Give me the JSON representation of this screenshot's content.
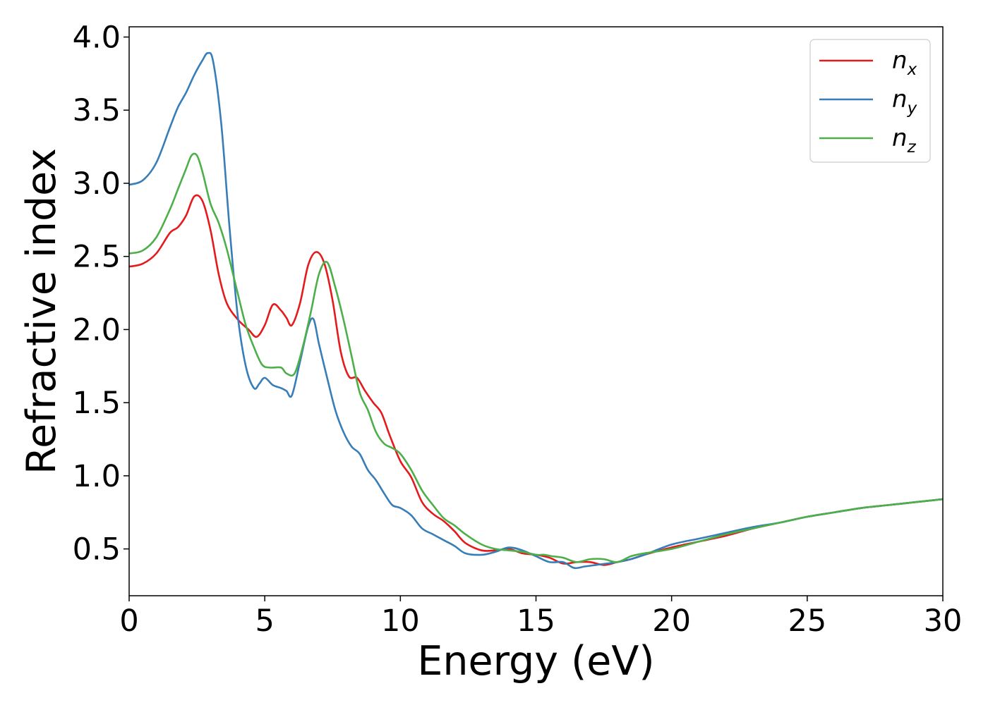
{
  "chart_data": {
    "type": "line",
    "xlabel": "Energy (eV)",
    "ylabel": "Refractive index",
    "xlim": [
      0,
      30
    ],
    "ylim": [
      0.18,
      4.07
    ],
    "xticks": [
      0,
      5,
      10,
      15,
      20,
      25,
      30
    ],
    "yticks": [
      0.5,
      1.0,
      1.5,
      2.0,
      2.5,
      3.0,
      3.5,
      4.0
    ],
    "xtick_labels": [
      "0",
      "5",
      "10",
      "15",
      "20",
      "25",
      "30"
    ],
    "ytick_labels": [
      "0.5",
      "1.0",
      "1.5",
      "2.0",
      "2.5",
      "3.0",
      "3.5",
      "4.0"
    ],
    "grid": false,
    "legend_position": "top-right",
    "series": [
      {
        "name": "n",
        "subscript": "x",
        "color": "#e41a1c",
        "x": [
          0,
          0.5,
          1.0,
          1.5,
          1.8,
          2.1,
          2.4,
          2.7,
          3.0,
          3.3,
          3.6,
          4.0,
          4.4,
          4.7,
          5.0,
          5.3,
          5.6,
          5.8,
          6.0,
          6.3,
          6.6,
          6.9,
          7.2,
          7.5,
          7.8,
          8.1,
          8.4,
          8.7,
          9.0,
          9.3,
          9.6,
          10.0,
          10.4,
          10.8,
          11.2,
          11.6,
          12.0,
          12.4,
          13.0,
          13.5,
          14.0,
          14.5,
          15.0,
          15.5,
          16.0,
          16.5,
          17.0,
          17.5,
          18.0,
          18.5,
          19.0,
          20.0,
          21.0,
          22.0,
          23.0,
          24.0,
          25.0,
          26.0,
          27.0,
          28.0,
          29.0,
          30.0
        ],
        "y": [
          2.43,
          2.45,
          2.52,
          2.66,
          2.7,
          2.78,
          2.91,
          2.88,
          2.68,
          2.38,
          2.18,
          2.07,
          2.0,
          1.95,
          2.03,
          2.17,
          2.13,
          2.08,
          2.03,
          2.18,
          2.44,
          2.53,
          2.45,
          2.2,
          1.85,
          1.68,
          1.67,
          1.58,
          1.5,
          1.43,
          1.28,
          1.1,
          0.99,
          0.82,
          0.74,
          0.69,
          0.62,
          0.54,
          0.49,
          0.49,
          0.5,
          0.47,
          0.46,
          0.44,
          0.4,
          0.41,
          0.41,
          0.39,
          0.41,
          0.43,
          0.46,
          0.51,
          0.55,
          0.59,
          0.64,
          0.68,
          0.72,
          0.75,
          0.78,
          0.8,
          0.82,
          0.84
        ]
      },
      {
        "name": "n",
        "subscript": "y",
        "color": "#377eb8",
        "x": [
          0,
          0.5,
          1.0,
          1.5,
          1.8,
          2.1,
          2.4,
          2.7,
          2.9,
          3.1,
          3.4,
          3.7,
          4.0,
          4.3,
          4.6,
          4.8,
          5.0,
          5.3,
          5.6,
          5.8,
          6.0,
          6.3,
          6.6,
          6.8,
          7.0,
          7.3,
          7.6,
          7.9,
          8.2,
          8.5,
          8.8,
          9.1,
          9.4,
          9.7,
          10.0,
          10.4,
          10.8,
          11.2,
          11.6,
          12.0,
          12.4,
          13.0,
          13.5,
          14.0,
          14.5,
          15.0,
          15.5,
          16.0,
          16.4,
          16.8,
          17.2,
          17.6,
          18.0,
          18.5,
          19.0,
          20.0,
          21.0,
          22.0,
          23.0,
          24.0,
          25.0,
          26.0,
          27.0,
          28.0,
          29.0,
          30.0
        ],
        "y": [
          2.99,
          3.02,
          3.14,
          3.38,
          3.52,
          3.62,
          3.74,
          3.84,
          3.89,
          3.83,
          3.4,
          2.7,
          2.1,
          1.75,
          1.6,
          1.63,
          1.67,
          1.62,
          1.6,
          1.58,
          1.55,
          1.78,
          2.02,
          2.07,
          1.9,
          1.67,
          1.45,
          1.3,
          1.2,
          1.15,
          1.04,
          0.97,
          0.88,
          0.8,
          0.78,
          0.73,
          0.64,
          0.6,
          0.56,
          0.52,
          0.47,
          0.46,
          0.48,
          0.51,
          0.49,
          0.45,
          0.41,
          0.41,
          0.37,
          0.38,
          0.39,
          0.4,
          0.41,
          0.43,
          0.46,
          0.53,
          0.57,
          0.61,
          0.65,
          0.68,
          0.72,
          0.75,
          0.78,
          0.8,
          0.82,
          0.84
        ]
      },
      {
        "name": "n",
        "subscript": "z",
        "color": "#4daf4a",
        "x": [
          0,
          0.5,
          1.0,
          1.5,
          1.8,
          2.1,
          2.3,
          2.5,
          2.7,
          3.0,
          3.3,
          3.6,
          4.0,
          4.3,
          4.6,
          4.9,
          5.2,
          5.6,
          5.8,
          6.1,
          6.4,
          6.7,
          7.0,
          7.3,
          7.6,
          7.9,
          8.2,
          8.5,
          8.8,
          9.1,
          9.4,
          9.7,
          10.0,
          10.4,
          10.8,
          11.2,
          11.6,
          12.0,
          12.4,
          13.0,
          13.5,
          14.0,
          14.5,
          15.0,
          15.3,
          15.6,
          16.0,
          16.5,
          17.0,
          17.5,
          18.0,
          18.5,
          19.0,
          20.0,
          21.0,
          22.0,
          23.0,
          24.0,
          25.0,
          26.0,
          27.0,
          28.0,
          29.0,
          30.0
        ],
        "y": [
          2.52,
          2.54,
          2.63,
          2.82,
          2.96,
          3.1,
          3.19,
          3.19,
          3.08,
          2.86,
          2.73,
          2.55,
          2.25,
          2.03,
          1.88,
          1.76,
          1.74,
          1.74,
          1.7,
          1.7,
          1.88,
          2.12,
          2.38,
          2.46,
          2.29,
          2.07,
          1.82,
          1.57,
          1.45,
          1.3,
          1.22,
          1.19,
          1.15,
          1.04,
          0.9,
          0.8,
          0.71,
          0.66,
          0.6,
          0.53,
          0.5,
          0.49,
          0.48,
          0.46,
          0.46,
          0.45,
          0.44,
          0.41,
          0.43,
          0.43,
          0.41,
          0.45,
          0.47,
          0.5,
          0.55,
          0.6,
          0.64,
          0.68,
          0.72,
          0.75,
          0.78,
          0.8,
          0.82,
          0.84
        ]
      }
    ]
  }
}
